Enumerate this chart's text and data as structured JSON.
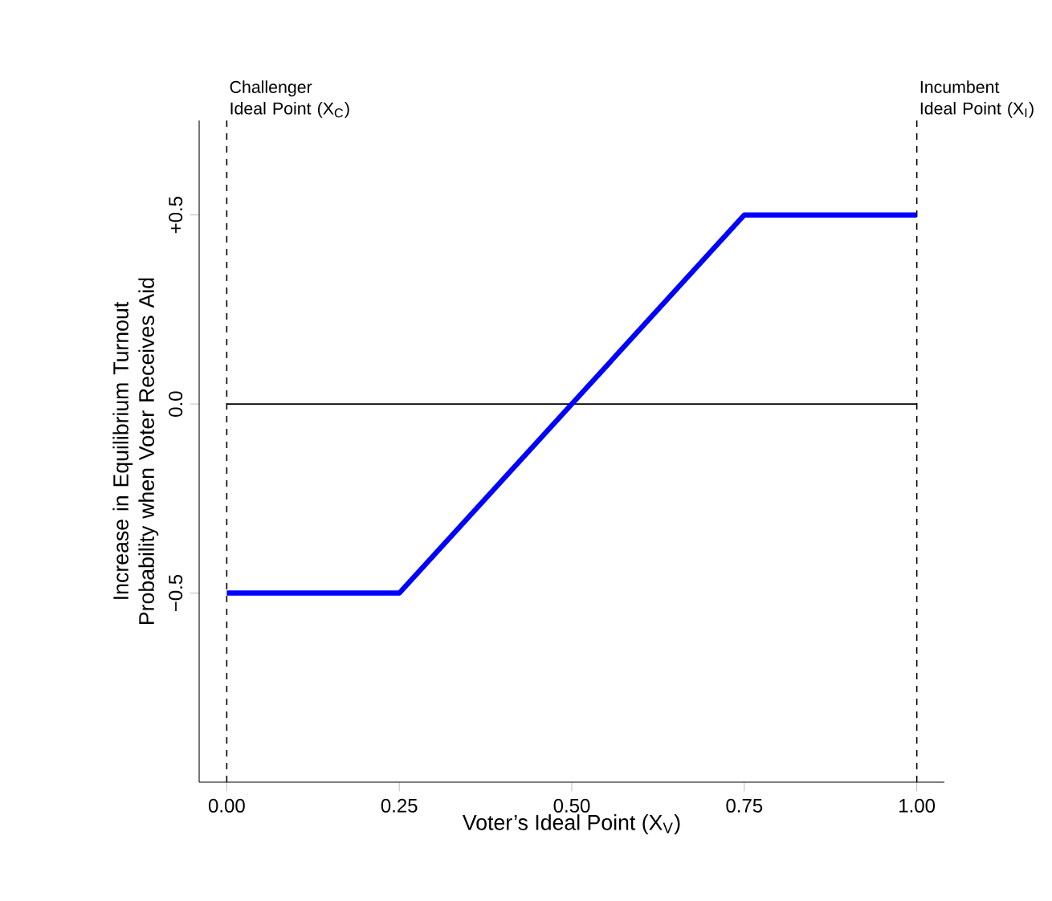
{
  "chart_data": {
    "type": "line",
    "xlabel": "Voter’s Ideal Point (X$_{V}$)",
    "ylabel": "Increase in Equilibrium Turnout Probability when Voter Receives Aid",
    "x": [
      0,
      0.25,
      0.75,
      1
    ],
    "series": [
      {
        "color": "#0000ff",
        "values": [
          -0.5,
          -0.5,
          0.5,
          0.5
        ]
      }
    ],
    "xlim": [
      -0.04,
      1.04
    ],
    "ylim": [
      -1,
      0.75
    ],
    "xticks": [
      {
        "value": 0,
        "label": "0.00"
      },
      {
        "value": 0.25,
        "label": "0.25"
      },
      {
        "value": 0.5,
        "label": "0.50"
      },
      {
        "value": 0.75,
        "label": "0.75"
      },
      {
        "value": 1,
        "label": "1.00"
      }
    ],
    "yticks": [
      {
        "value": -0.5,
        "label": "−0.5"
      },
      {
        "value": 0,
        "label": "0.0"
      },
      {
        "value": 0.5,
        "label": "+0.5"
      }
    ],
    "ref_lines": [
      {
        "axis": "y",
        "value": 0,
        "color": "#000000",
        "line_style": "solid"
      },
      {
        "axis": "x",
        "value": 0,
        "label": "Challenger Ideal Point (X$_{C}$)",
        "color": "#000000",
        "line_style": "dashed"
      },
      {
        "axis": "x",
        "value": 1,
        "label": "Incumbent Ideal Point (X$_{I}$)",
        "color": "#000000",
        "line_style": "dashed"
      }
    ],
    "line_style": "solid",
    "marker": "none"
  }
}
